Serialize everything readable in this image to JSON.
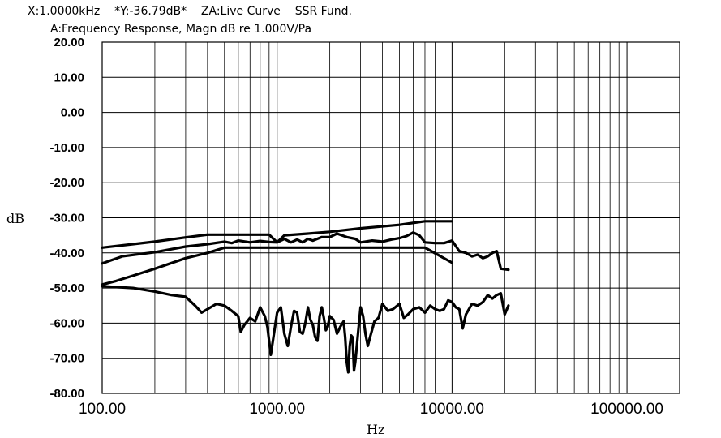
{
  "header": {
    "line1": "X:1.0000kHz    *Y:-36.79dB*    ZA:Live Curve    SSR Fund.",
    "line2": "A:Frequency Response, Magn dB re 1.000V/Pa"
  },
  "colors": {
    "curve": "#000000",
    "grid": "#000000",
    "background": "#ffffff"
  },
  "chart_data": {
    "type": "line",
    "title": "A:Frequency Response, Magn dB re 1.000V/Pa",
    "xlabel": "Hz",
    "ylabel": "dB",
    "xscale": "log",
    "xlim": [
      100,
      200000
    ],
    "ylim": [
      -80,
      20
    ],
    "grid": true,
    "legend": "none",
    "x_tick_labels": [
      "100.00",
      "1000.00",
      "10000.00",
      "100000.00"
    ],
    "x_tick_values": [
      100,
      1000,
      10000,
      100000
    ],
    "y_tick_labels": [
      "20.00",
      "10.00",
      "0.00",
      "-10.00",
      "-20.00",
      "-30.00",
      "-40.00",
      "-50.00",
      "-60.00",
      "-70.00",
      "-80.00"
    ],
    "y_tick_values": [
      20,
      10,
      0,
      -10,
      -20,
      -30,
      -40,
      -50,
      -60,
      -70,
      -80
    ],
    "series": [
      {
        "x": [
          100,
          150,
          200,
          300,
          400,
          500,
          600,
          700,
          900,
          1000,
          1100,
          1500,
          2000,
          3000,
          5000,
          7000,
          10000
        ],
        "y": [
          -38.5,
          -37.5,
          -36.8,
          -35.6,
          -34.8,
          -34.8,
          -34.8,
          -34.8,
          -34.8,
          -37.0,
          -35.0,
          -34.5,
          -34.0,
          -33.0,
          -32.0,
          -31.0,
          -31.0
        ]
      },
      {
        "x": [
          100,
          120,
          150,
          200,
          300,
          400,
          500,
          600,
          700,
          900,
          1000,
          1100,
          1500,
          2000,
          3000,
          5000,
          7000,
          10000
        ],
        "y": [
          -49.0,
          -48.0,
          -46.5,
          -44.5,
          -41.5,
          -40.0,
          -38.5,
          -38.5,
          -38.5,
          -38.5,
          -38.5,
          -38.5,
          -38.5,
          -38.5,
          -38.5,
          -38.5,
          -38.5,
          -42.8
        ]
      },
      {
        "x": [
          100,
          130,
          200,
          300,
          400,
          500,
          550,
          600,
          700,
          800,
          900,
          1000,
          1050,
          1100,
          1200,
          1300,
          1400,
          1500,
          1600,
          1800,
          2000,
          2200,
          2500,
          2800,
          3000,
          3500,
          4000,
          4500,
          5000,
          5500,
          6000,
          6500,
          7000,
          8000,
          9000,
          10000,
          11000,
          12000,
          13000,
          14000,
          15000,
          16000,
          17000,
          18000,
          19000,
          21000
        ],
        "y": [
          -43.0,
          -41.0,
          -39.8,
          -38.2,
          -37.5,
          -36.8,
          -37.2,
          -36.5,
          -37.0,
          -36.6,
          -36.9,
          -37.0,
          -36.5,
          -36.0,
          -37.0,
          -36.2,
          -37.0,
          -36.0,
          -36.5,
          -35.5,
          -35.5,
          -34.5,
          -35.5,
          -36.0,
          -37.0,
          -36.5,
          -36.8,
          -36.2,
          -35.8,
          -35.2,
          -34.2,
          -35.0,
          -37.0,
          -37.2,
          -37.2,
          -36.5,
          -39.5,
          -40.0,
          -41.0,
          -40.5,
          -41.5,
          -41.0,
          -40.0,
          -39.5,
          -44.5,
          -44.8
        ]
      },
      {
        "x": [
          100,
          150,
          200,
          250,
          300,
          340,
          370,
          400,
          450,
          500,
          550,
          600,
          620,
          650,
          700,
          750,
          800,
          850,
          880,
          920,
          1000,
          1050,
          1100,
          1150,
          1200,
          1250,
          1300,
          1350,
          1400,
          1450,
          1500,
          1550,
          1600,
          1650,
          1700,
          1750,
          1800,
          1850,
          1900,
          1950,
          2000,
          2100,
          2200,
          2300,
          2400,
          2450,
          2500,
          2550,
          2600,
          2650,
          2700,
          2750,
          2800,
          2900,
          3000,
          3100,
          3200,
          3300,
          3400,
          3600,
          3800,
          4000,
          4300,
          4600,
          5000,
          5300,
          5600,
          6000,
          6500,
          7000,
          7500,
          8000,
          8500,
          9000,
          9500,
          10000,
          10500,
          11000,
          11500,
          12000,
          13000,
          14000,
          15000,
          16000,
          17000,
          18000,
          19000,
          20000,
          21000
        ],
        "y": [
          -49.5,
          -50.0,
          -51.0,
          -52.0,
          -52.5,
          -55.0,
          -57.0,
          -56.0,
          -54.5,
          -55.0,
          -56.5,
          -58.0,
          -62.5,
          -60.5,
          -58.5,
          -59.5,
          -55.5,
          -58.0,
          -61.0,
          -69.0,
          -57.0,
          -55.5,
          -63.0,
          -66.5,
          -61.0,
          -56.5,
          -57.0,
          -62.5,
          -63.0,
          -60.0,
          -55.5,
          -59.0,
          -60.5,
          -64.0,
          -65.0,
          -58.0,
          -55.5,
          -58.5,
          -62.0,
          -61.0,
          -58.0,
          -59.0,
          -63.0,
          -61.0,
          -59.5,
          -64.0,
          -71.0,
          -74.0,
          -66.5,
          -63.5,
          -64.0,
          -73.5,
          -71.0,
          -63.0,
          -55.5,
          -58.0,
          -63.0,
          -66.5,
          -64.0,
          -59.5,
          -58.5,
          -54.5,
          -56.5,
          -56.0,
          -54.5,
          -58.5,
          -57.5,
          -56.0,
          -55.5,
          -57.0,
          -55.0,
          -56.0,
          -56.5,
          -56.0,
          -53.5,
          -54.0,
          -55.5,
          -56.0,
          -61.5,
          -57.5,
          -54.5,
          -55.0,
          -54.0,
          -52.0,
          -53.0,
          -52.0,
          -51.5,
          -57.5,
          -55.0
        ]
      }
    ]
  }
}
